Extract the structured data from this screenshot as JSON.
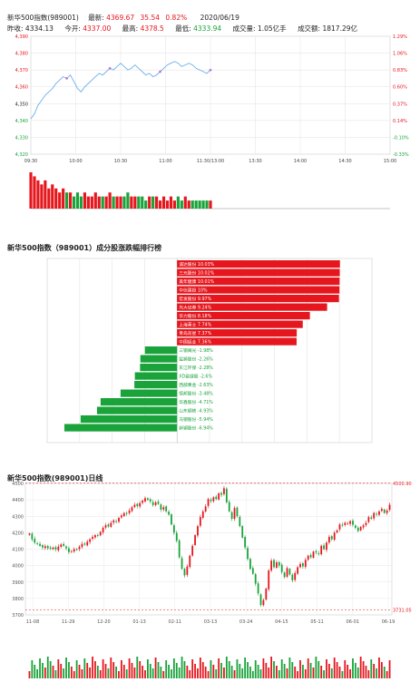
{
  "header": {
    "name": "新华500指数(989001)",
    "latest_label": "最新:",
    "latest": "4369.67",
    "change": "35.54",
    "change_pct": "0.82%",
    "date": "2020/06/19",
    "prev_close_label": "昨收:",
    "prev_close": "4334.13",
    "open_label": "今开:",
    "open": "4337.00",
    "high_label": "最高:",
    "high": "4378.5",
    "low_label": "最低:",
    "low": "4333.94",
    "volume_label": "成交量:",
    "volume": "1.05亿手",
    "amount_label": "成交额:",
    "amount": "1817.29亿"
  },
  "colors": {
    "up": "#e5161d",
    "down": "#19a33a",
    "line": "#6aaeea"
  },
  "chart_data": [
    {
      "type": "line",
      "title": "",
      "y_ticks_left": [
        "4,390",
        "4,380",
        "4,370",
        "4,360",
        "4,350",
        "4,340",
        "4,330",
        "4,320"
      ],
      "y_ticks_right": [
        "1.29%",
        "1.06%",
        "0.83%",
        "0.60%",
        "0.37%",
        "0.14%",
        "-0.10%",
        "-0.33%"
      ],
      "x_ticks": [
        "09:30",
        "10:00",
        "10:30",
        "11:00",
        "11:30/13:00",
        "13:30",
        "14:00",
        "14:30",
        "15:00"
      ],
      "ylim": [
        4320,
        4390
      ],
      "series": [
        {
          "values": [
            4341,
            4344,
            4349,
            4352,
            4355,
            4357,
            4359,
            4362,
            4364,
            4366,
            4365,
            4367,
            4363,
            4359,
            4357,
            4360,
            4362,
            4364,
            4366,
            4368,
            4367,
            4369,
            4371,
            4370,
            4372,
            4374,
            4372,
            4370,
            4371,
            4373,
            4371,
            4369,
            4367,
            4368,
            4366,
            4367,
            4369,
            4371,
            4373,
            4374,
            4375,
            4374,
            4372,
            4373,
            4374,
            4373,
            4371,
            4370,
            4369,
            4368,
            4370
          ]
        }
      ],
      "volumes": [
        9,
        8,
        7,
        6,
        7,
        5,
        6,
        5,
        4,
        5,
        4,
        4,
        3,
        4,
        3,
        4,
        3,
        3,
        4,
        3,
        3,
        3,
        4,
        3,
        3,
        3,
        3,
        4,
        3,
        3,
        3,
        3,
        2,
        3,
        3,
        3,
        2,
        3,
        2,
        3,
        2,
        3,
        2,
        3,
        2,
        2,
        2,
        2,
        2,
        2,
        2
      ]
    },
    {
      "type": "bar",
      "title": "新华500指数（989001）成分股涨跌幅排行榜",
      "categories": [
        "诚达股份",
        "三元股份",
        "美年健康",
        "中信建投",
        "宏发股份",
        "光大证券",
        "华力股份",
        "上海莱士",
        "青岛双星",
        "中国铝业",
        "三钢闽光",
        "猛狮股份",
        "东江环保",
        "XD恩捷股",
        "西部黄金",
        "恒邦股份",
        "华鑫股份",
        "山东钢铁",
        "马钢股份",
        "新钢股份"
      ],
      "values": [
        10.03,
        10.02,
        10.01,
        10.0,
        9.97,
        9.24,
        8.18,
        7.74,
        7.37,
        7.36,
        -1.98,
        -2.26,
        -2.28,
        -2.6,
        -2.63,
        -3.48,
        -4.71,
        -4.93,
        -5.94,
        -6.94
      ],
      "labels": [
        "诚达股份 10.03%",
        "三元股份 10.02%",
        "美年健康 10.01%",
        "中信建投 10%",
        "宏发股份 9.97%",
        "光大证券 9.24%",
        "华力股份 8.18%",
        "上海莱士 7.74%",
        "青岛双星 7.37%",
        "中国铝业 7.36%",
        "三钢闽光 -1.98%",
        "猛狮股份 -2.26%",
        "东江环保 -2.28%",
        "XD恩捷股 -2.6%",
        "西部黄金 -2.63%",
        "恒邦股份 -3.48%",
        "华鑫股份 -4.71%",
        "山东钢铁 -4.93%",
        "马钢股份 -5.94%",
        "新钢股份 -6.94%"
      ]
    },
    {
      "type": "candlestick",
      "title": "新华500指数(989001)日线",
      "y_ticks": [
        "4500",
        "4400",
        "4300",
        "4200",
        "4100",
        "4000",
        "3900",
        "3800",
        "3700"
      ],
      "x_ticks": [
        "11-08",
        "11-29",
        "12-20",
        "01-13",
        "02-11",
        "03-13",
        "03-24",
        "04-15",
        "05-11",
        "06-01",
        "06-19"
      ],
      "ylim": [
        3700,
        4500
      ],
      "max_label": "4500.90",
      "min_label": "3731.05",
      "closes": [
        4195,
        4160,
        4140,
        4132,
        4120,
        4110,
        4118,
        4105,
        4102,
        4110,
        4098,
        4115,
        4128,
        4120,
        4105,
        4082,
        4088,
        4100,
        4095,
        4115,
        4132,
        4128,
        4145,
        4160,
        4175,
        4185,
        4180,
        4205,
        4230,
        4245,
        4238,
        4260,
        4275,
        4268,
        4290,
        4305,
        4320,
        4315,
        4335,
        4355,
        4370,
        4362,
        4380,
        4395,
        4410,
        4400,
        4390,
        4368,
        4385,
        4375,
        4340,
        4355,
        4330,
        4310,
        4250,
        4200,
        4150,
        4050,
        3980,
        3940,
        3995,
        4060,
        4120,
        4185,
        4240,
        4295,
        4330,
        4360,
        4405,
        4392,
        4415,
        4405,
        4440,
        4430,
        4470,
        4385,
        4330,
        4285,
        4350,
        4300,
        4240,
        4170,
        4110,
        4040,
        3980,
        3950,
        3890,
        3830,
        3760,
        3790,
        3860,
        3970,
        4030,
        3990,
        4020,
        4000,
        3960,
        3930,
        3985,
        3945,
        3910,
        3955,
        3990,
        4010,
        3995,
        4035,
        4060,
        4050,
        4085,
        4080,
        4070,
        4120,
        4100,
        4140,
        4175,
        4160,
        4200,
        4215,
        4250,
        4245,
        4260,
        4255,
        4270,
        4248,
        4230,
        4210,
        4235,
        4245,
        4260,
        4295,
        4285,
        4320,
        4310,
        4330,
        4345,
        4320,
        4335,
        4370
      ]
    }
  ]
}
